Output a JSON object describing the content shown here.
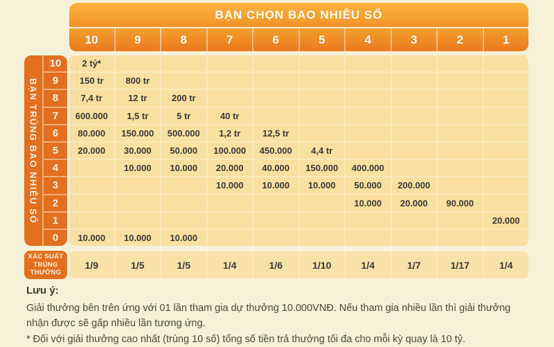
{
  "banner": {
    "title": "BẠN CHỌN BAO NHIÊU SỐ"
  },
  "left_axis": {
    "label": "BẠN TRÚNG BAO NHIÊU SỐ"
  },
  "probability": {
    "label_lines": [
      "XÁC SUẤT",
      "TRÚNG",
      "THƯỞNG"
    ]
  },
  "notes": {
    "title": "Lưu ý:",
    "body": "Giải thưởng bên trên ứng với 01 lần tham gia dự thưởng 10.000VNĐ. Nếu tham gia nhiều lần thì giải thưởng nhận được sẽ gấp nhiều lần tương ứng.",
    "star": "* Đối với giải thưởng cao nhất (trùng 10 số) tổng số tiền trả thưởng tối đa cho mỗi kỳ quay là 10 tỷ."
  },
  "colors": {
    "accent_orange": "#E3701F",
    "banner_gradient_top": "#FBB540",
    "banner_gradient_bottom": "#EB7A1F",
    "cell_bg": "#F9DFA1",
    "page_bg": "#F8F1D9",
    "cell_text": "#3C3A33"
  },
  "chart_data": {
    "type": "table",
    "title": "BẠN CHỌN BAO NHIÊU SỐ",
    "row_axis_label": "BẠN TRÚNG BAO NHIÊU SỐ",
    "columns": [
      "10",
      "9",
      "8",
      "7",
      "6",
      "5",
      "4",
      "3",
      "2",
      "1"
    ],
    "rows": [
      {
        "hits": "10",
        "cells": [
          "2 tỷ*",
          "",
          "",
          "",
          "",
          "",
          "",
          "",
          "",
          ""
        ]
      },
      {
        "hits": "9",
        "cells": [
          "150 tr",
          "800 tr",
          "",
          "",
          "",
          "",
          "",
          "",
          "",
          ""
        ]
      },
      {
        "hits": "8",
        "cells": [
          "7,4 tr",
          "12 tr",
          "200 tr",
          "",
          "",
          "",
          "",
          "",
          "",
          ""
        ]
      },
      {
        "hits": "7",
        "cells": [
          "600.000",
          "1,5 tr",
          "5 tr",
          "40 tr",
          "",
          "",
          "",
          "",
          "",
          ""
        ]
      },
      {
        "hits": "6",
        "cells": [
          "80.000",
          "150.000",
          "500.000",
          "1,2 tr",
          "12,5 tr",
          "",
          "",
          "",
          "",
          ""
        ]
      },
      {
        "hits": "5",
        "cells": [
          "20.000",
          "30.000",
          "50.000",
          "100.000",
          "450.000",
          "4,4 tr",
          "",
          "",
          "",
          ""
        ]
      },
      {
        "hits": "4",
        "cells": [
          "",
          "10.000",
          "10.000",
          "20.000",
          "40.000",
          "150.000",
          "400.000",
          "",
          "",
          ""
        ]
      },
      {
        "hits": "3",
        "cells": [
          "",
          "",
          "",
          "10.000",
          "10.000",
          "10.000",
          "50.000",
          "200.000",
          "",
          ""
        ]
      },
      {
        "hits": "2",
        "cells": [
          "",
          "",
          "",
          "",
          "",
          "",
          "10.000",
          "20.000",
          "90.000",
          ""
        ]
      },
      {
        "hits": "1",
        "cells": [
          "",
          "",
          "",
          "",
          "",
          "",
          "",
          "",
          "",
          "20.000"
        ]
      },
      {
        "hits": "0",
        "cells": [
          "10.000",
          "10.000",
          "10.000",
          "",
          "",
          "",
          "",
          "",
          "",
          ""
        ]
      }
    ],
    "probability_row": {
      "label": "XÁC SUẤT TRÚNG THƯỞNG",
      "values": [
        "1/9",
        "1/5",
        "1/5",
        "1/4",
        "1/6",
        "1/10",
        "1/4",
        "1/7",
        "1/17",
        "1/4"
      ]
    }
  }
}
